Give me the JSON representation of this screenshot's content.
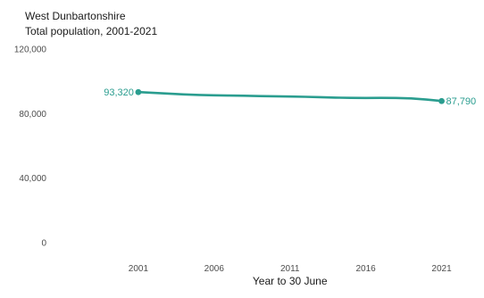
{
  "chart_data": {
    "type": "line",
    "title": "West Dunbartonshire",
    "subtitle": "Total population, 2001-2021",
    "xlabel": "Year to 30 June",
    "ylabel": "",
    "x": [
      2001,
      2002,
      2003,
      2004,
      2005,
      2006,
      2007,
      2008,
      2009,
      2010,
      2011,
      2012,
      2013,
      2014,
      2015,
      2016,
      2017,
      2018,
      2019,
      2020,
      2021
    ],
    "series": [
      {
        "values": [
          93320,
          92850,
          92400,
          91900,
          91550,
          91350,
          91200,
          91050,
          90850,
          90700,
          90600,
          90400,
          90150,
          89900,
          89750,
          89700,
          89750,
          89650,
          89400,
          88700,
          87790
        ]
      }
    ],
    "x_ticks": [
      2001,
      2006,
      2011,
      2016,
      2021
    ],
    "x_tick_labels": [
      "2001",
      "2006",
      "2011",
      "2016",
      "2021"
    ],
    "y_ticks": [
      0,
      40000,
      80000,
      120000
    ],
    "y_tick_labels": [
      "0",
      "40,000",
      "80,000",
      "120,000"
    ],
    "xlim": [
      1996,
      2022.5
    ],
    "ylim": [
      -10000,
      120000
    ],
    "grid": false,
    "legend": "none",
    "annotations": [
      {
        "x": 2001,
        "y": 93320,
        "text": "93,320",
        "side": "left"
      },
      {
        "x": 2021,
        "y": 87790,
        "text": "87,790",
        "side": "right"
      }
    ],
    "colors": {
      "line": "#2a9d8f",
      "label": "#2a9d8f",
      "tick": "#4d4d4d"
    }
  }
}
